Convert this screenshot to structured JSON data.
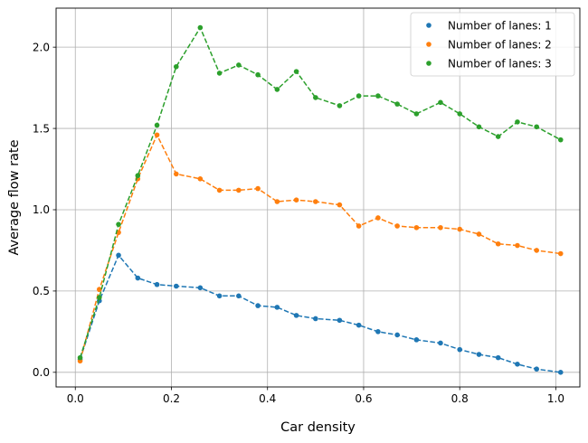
{
  "chart_data": {
    "type": "scatter",
    "xlabel": "Car density",
    "ylabel": "Average flow rate",
    "xlim": [
      -0.04,
      1.05
    ],
    "ylim": [
      -0.09,
      2.24
    ],
    "xticks": [
      0.0,
      0.2,
      0.4,
      0.6,
      0.8,
      1.0
    ],
    "xtick_labels": [
      "0.0",
      "0.2",
      "0.4",
      "0.6",
      "0.8",
      "1.0"
    ],
    "yticks": [
      0.0,
      0.5,
      1.0,
      1.5,
      2.0
    ],
    "ytick_labels": [
      "0.0",
      "0.5",
      "1.0",
      "1.5",
      "2.0"
    ],
    "grid": true,
    "legend_position": "top-right",
    "x": [
      0.01,
      0.05,
      0.09,
      0.13,
      0.17,
      0.21,
      0.26,
      0.3,
      0.34,
      0.38,
      0.42,
      0.46,
      0.5,
      0.55,
      0.59,
      0.63,
      0.67,
      0.71,
      0.76,
      0.8,
      0.84,
      0.88,
      0.92,
      0.96,
      1.01
    ],
    "series": [
      {
        "name": "Number of lanes: 1",
        "color": "#1f77b4",
        "values": [
          0.08,
          0.44,
          0.72,
          0.58,
          0.54,
          0.53,
          0.52,
          0.47,
          0.47,
          0.41,
          0.4,
          0.35,
          0.33,
          0.32,
          0.29,
          0.25,
          0.23,
          0.2,
          0.18,
          0.14,
          0.11,
          0.09,
          0.05,
          0.02,
          0.0
        ]
      },
      {
        "name": "Number of lanes: 2",
        "color": "#ff7f0e",
        "values": [
          0.07,
          0.51,
          0.86,
          1.19,
          1.46,
          1.22,
          1.19,
          1.12,
          1.12,
          1.13,
          1.05,
          1.06,
          1.05,
          1.03,
          0.9,
          0.95,
          0.9,
          0.89,
          0.89,
          0.88,
          0.85,
          0.79,
          0.78,
          0.75,
          0.73
        ]
      },
      {
        "name": "Number of lanes: 3",
        "color": "#2ca02c",
        "values": [
          0.09,
          0.46,
          0.91,
          1.21,
          1.52,
          1.88,
          2.12,
          1.84,
          1.89,
          1.83,
          1.74,
          1.85,
          1.69,
          1.64,
          1.7,
          1.7,
          1.65,
          1.59,
          1.66,
          1.59,
          1.51,
          1.45,
          1.54,
          1.51,
          1.43
        ]
      }
    ]
  }
}
